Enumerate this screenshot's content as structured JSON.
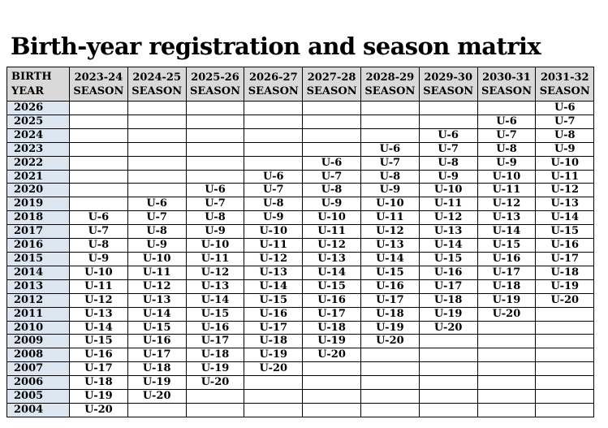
{
  "page": {
    "title": "Birth-year registration and season matrix"
  },
  "colors": {
    "header_bg": "#d9d9d9",
    "year_column_bg": "#dce6f1",
    "border": "#000000",
    "text": "#000000"
  },
  "table": {
    "corner_header": "BIRTH YEAR",
    "season_headers": [
      {
        "years": "2023-24",
        "label": "SEASON"
      },
      {
        "years": "2024-25",
        "label": "SEASON"
      },
      {
        "years": "2025-26",
        "label": "SEASON"
      },
      {
        "years": "2026-27",
        "label": "SEASON"
      },
      {
        "years": "2027-28",
        "label": "SEASON"
      },
      {
        "years": "2028-29",
        "label": "SEASON"
      },
      {
        "years": "2029-30",
        "label": "SEASON"
      },
      {
        "years": "2030-31",
        "label": "SEASON"
      },
      {
        "years": "2031-32",
        "label": "SEASON"
      }
    ],
    "rows": [
      {
        "year": "2026",
        "cells": [
          "",
          "",
          "",
          "",
          "",
          "",
          "",
          "",
          "U-6"
        ]
      },
      {
        "year": "2025",
        "cells": [
          "",
          "",
          "",
          "",
          "",
          "",
          "",
          "U-6",
          "U-7"
        ]
      },
      {
        "year": "2024",
        "cells": [
          "",
          "",
          "",
          "",
          "",
          "",
          "U-6",
          "U-7",
          "U-8"
        ]
      },
      {
        "year": "2023",
        "cells": [
          "",
          "",
          "",
          "",
          "",
          "U-6",
          "U-7",
          "U-8",
          "U-9"
        ]
      },
      {
        "year": "2022",
        "cells": [
          "",
          "",
          "",
          "",
          "U-6",
          "U-7",
          "U-8",
          "U-9",
          "U-10"
        ]
      },
      {
        "year": "2021",
        "cells": [
          "",
          "",
          "",
          "U-6",
          "U-7",
          "U-8",
          "U-9",
          "U-10",
          "U-11"
        ]
      },
      {
        "year": "2020",
        "cells": [
          "",
          "",
          "U-6",
          "U-7",
          "U-8",
          "U-9",
          "U-10",
          "U-11",
          "U-12"
        ]
      },
      {
        "year": "2019",
        "cells": [
          "",
          "U-6",
          "U-7",
          "U-8",
          "U-9",
          "U-10",
          "U-11",
          "U-12",
          "U-13"
        ]
      },
      {
        "year": "2018",
        "cells": [
          "U-6",
          "U-7",
          "U-8",
          "U-9",
          "U-10",
          "U-11",
          "U-12",
          "U-13",
          "U-14"
        ]
      },
      {
        "year": "2017",
        "cells": [
          "U-7",
          "U-8",
          "U-9",
          "U-10",
          "U-11",
          "U-12",
          "U-13",
          "U-14",
          "U-15"
        ]
      },
      {
        "year": "2016",
        "cells": [
          "U-8",
          "U-9",
          "U-10",
          "U-11",
          "U-12",
          "U-13",
          "U-14",
          "U-15",
          "U-16"
        ]
      },
      {
        "year": "2015",
        "cells": [
          "U-9",
          "U-10",
          "U-11",
          "U-12",
          "U-13",
          "U-14",
          "U-15",
          "U-16",
          "U-17"
        ]
      },
      {
        "year": "2014",
        "cells": [
          "U-10",
          "U-11",
          "U-12",
          "U-13",
          "U-14",
          "U-15",
          "U-16",
          "U-17",
          "U-18"
        ]
      },
      {
        "year": "2013",
        "cells": [
          "U-11",
          "U-12",
          "U-13",
          "U-14",
          "U-15",
          "U-16",
          "U-17",
          "U-18",
          "U-19"
        ]
      },
      {
        "year": "2012",
        "cells": [
          "U-12",
          "U-13",
          "U-14",
          "U-15",
          "U-16",
          "U-17",
          "U-18",
          "U-19",
          "U-20"
        ]
      },
      {
        "year": "2011",
        "cells": [
          "U-13",
          "U-14",
          "U-15",
          "U-16",
          "U-17",
          "U-18",
          "U-19",
          "U-20",
          ""
        ]
      },
      {
        "year": "2010",
        "cells": [
          "U-14",
          "U-15",
          "U-16",
          "U-17",
          "U-18",
          "U-19",
          "U-20",
          "",
          ""
        ]
      },
      {
        "year": "2009",
        "cells": [
          "U-15",
          "U-16",
          "U-17",
          "U-18",
          "U-19",
          "U-20",
          "",
          "",
          ""
        ]
      },
      {
        "year": "2008",
        "cells": [
          "U-16",
          "U-17",
          "U-18",
          "U-19",
          "U-20",
          "",
          "",
          "",
          ""
        ]
      },
      {
        "year": "2007",
        "cells": [
          "U-17",
          "U-18",
          "U-19",
          "U-20",
          "",
          "",
          "",
          "",
          ""
        ]
      },
      {
        "year": "2006",
        "cells": [
          "U-18",
          "U-19",
          "U-20",
          "",
          "",
          "",
          "",
          "",
          ""
        ]
      },
      {
        "year": "2005",
        "cells": [
          "U-19",
          "U-20",
          "",
          "",
          "",
          "",
          "",
          "",
          ""
        ]
      },
      {
        "year": "2004",
        "cells": [
          "U-20",
          "",
          "",
          "",
          "",
          "",
          "",
          "",
          ""
        ]
      }
    ]
  }
}
